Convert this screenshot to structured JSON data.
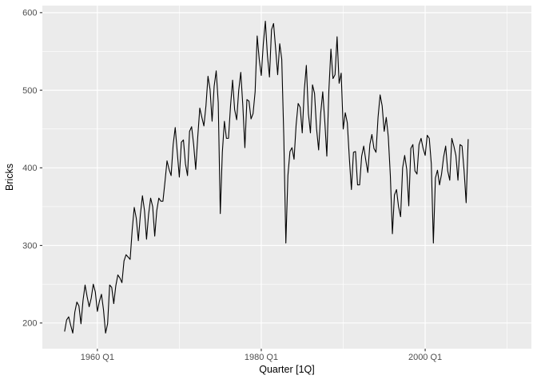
{
  "chart_data": {
    "type": "line",
    "title": "",
    "xlabel": "Quarter [1Q]",
    "ylabel": "Bricks",
    "series_name": "Bricks",
    "frequency": "quarterly",
    "x_start": "1956 Q1",
    "x_end": "2005 Q2",
    "values": [
      189,
      204,
      208,
      197,
      187,
      214,
      227,
      222,
      199,
      229,
      249,
      234,
      221,
      232,
      250,
      240,
      215,
      228,
      237,
      217,
      187,
      199,
      249,
      246,
      225,
      248,
      262,
      258,
      252,
      280,
      288,
      285,
      282,
      320,
      349,
      335,
      306,
      340,
      364,
      345,
      308,
      340,
      361,
      350,
      312,
      345,
      361,
      357,
      357,
      382,
      409,
      398,
      390,
      430,
      452,
      420,
      388,
      433,
      436,
      405,
      390,
      447,
      453,
      430,
      398,
      440,
      477,
      465,
      454,
      480,
      518,
      501,
      460,
      505,
      525,
      484,
      341,
      420,
      460,
      438,
      438,
      480,
      513,
      475,
      462,
      500,
      523,
      480,
      426,
      488,
      486,
      463,
      470,
      498,
      570,
      540,
      519,
      560,
      589,
      545,
      517,
      578,
      586,
      554,
      520,
      560,
      540,
      440,
      303,
      390,
      421,
      426,
      411,
      455,
      483,
      478,
      445,
      500,
      532,
      470,
      445,
      507,
      496,
      450,
      423,
      470,
      498,
      460,
      415,
      500,
      553,
      515,
      520,
      569,
      509,
      522,
      450,
      471,
      458,
      412,
      372,
      420,
      421,
      378,
      378,
      415,
      428,
      410,
      394,
      430,
      443,
      425,
      420,
      465,
      494,
      480,
      447,
      465,
      440,
      390,
      315,
      365,
      372,
      350,
      337,
      400,
      416,
      398,
      351,
      425,
      430,
      396,
      392,
      430,
      438,
      425,
      416,
      442,
      438,
      405,
      303,
      387,
      397,
      378,
      392,
      414,
      428,
      396,
      384,
      438,
      428,
      416,
      384,
      430,
      428,
      396,
      355,
      437
    ],
    "x_axis": {
      "ticks": [
        "1960 Q1",
        "1980 Q1",
        "2000 Q1"
      ],
      "minor_ticks": [
        "1970 Q1",
        "1990 Q1",
        "2010 Q1"
      ],
      "range": [
        "1956 Q1",
        "2010 Q2"
      ]
    },
    "y_axis": {
      "ticks": [
        200,
        300,
        400,
        500,
        600
      ],
      "minor_ticks": [
        250,
        350,
        450,
        550
      ],
      "range": [
        187,
        589
      ]
    },
    "ylim": [
      166.9,
      609.1
    ],
    "grid": true,
    "legend": "none",
    "style": {
      "background": "#FFFFFF",
      "panel_bg": "#EBEBEB",
      "grid_major": "#FFFFFF",
      "grid_minor": "#FFFFFF",
      "line_color": "#000000",
      "tick_mark_color": "#333333",
      "tick_label_color": "#4D4D4D",
      "axis_title_color": "#000000"
    }
  }
}
